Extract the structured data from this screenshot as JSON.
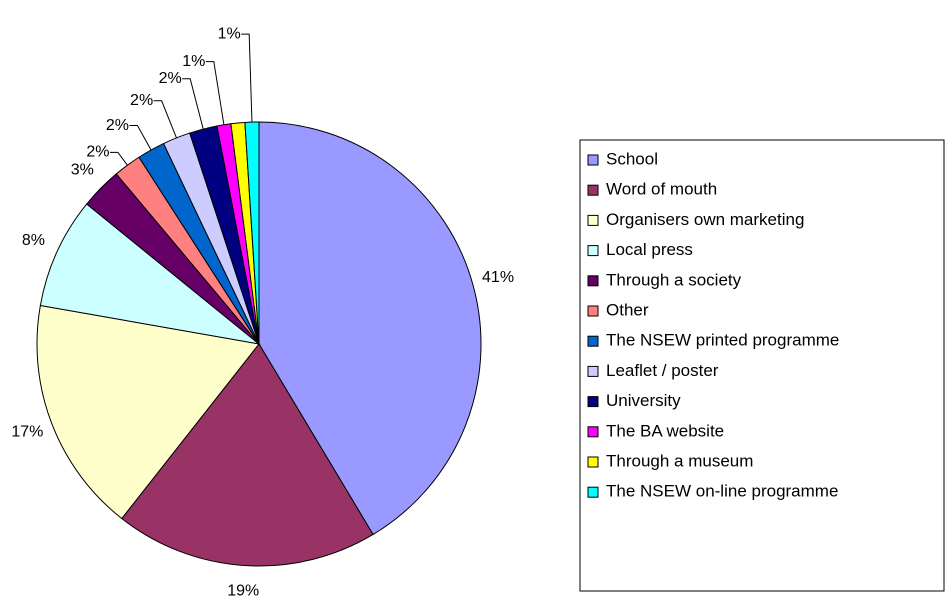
{
  "chart_data": {
    "type": "pie",
    "categories": [
      "School",
      "Word of mouth",
      "Organisers own marketing",
      "Local press",
      "Through a society",
      "Other",
      "The NSEW printed programme",
      "Leaflet / poster",
      "University",
      "The BA website",
      "Through a museum",
      "The NSEW on-line programme"
    ],
    "values": [
      41,
      19,
      17,
      8,
      3,
      2,
      2,
      2,
      2,
      1,
      1,
      1
    ],
    "value_labels": [
      "41%",
      "19%",
      "17%",
      "8%",
      "3%",
      "2%",
      "2%",
      "2%",
      "2%",
      "1%",
      null,
      "1%"
    ],
    "colors": [
      "#9999ff",
      "#993366",
      "#ffffcc",
      "#ccffff",
      "#660066",
      "#ff8080",
      "#0066cc",
      "#ccccff",
      "#000080",
      "#ff00ff",
      "#ffff00",
      "#00ffff"
    ],
    "legend": "right"
  }
}
